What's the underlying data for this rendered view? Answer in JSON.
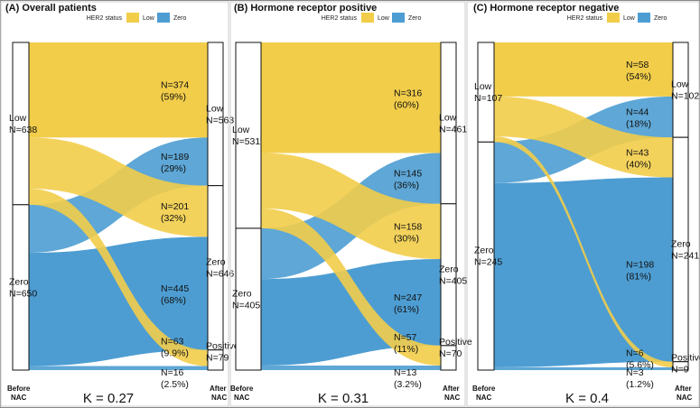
{
  "colors": {
    "low": "#F2CD4A",
    "zero": "#4D9DD2",
    "border": "#111111"
  },
  "chart_data": [
    {
      "type": "sankey",
      "title": "(A) Overall patients",
      "legend": {
        "title": "HER2 status",
        "items": [
          "Low",
          "Zero"
        ]
      },
      "axis_labels": {
        "before": "Before NAC",
        "after": "After NAC"
      },
      "kappa": "K = 0.27",
      "before": [
        {
          "key": "low",
          "label": "Low",
          "n_text": "N=638",
          "n": 638
        },
        {
          "key": "zero",
          "label": "Zero",
          "n_text": "N=650",
          "n": 650
        }
      ],
      "after": [
        {
          "key": "low",
          "label": "Low",
          "n_text": "N=563",
          "n": 563
        },
        {
          "key": "zero",
          "label": "Zero",
          "n_text": "N=646",
          "n": 646
        },
        {
          "key": "positive",
          "label": "Positive",
          "n_text": "N=79",
          "n": 79
        }
      ],
      "flows": [
        {
          "from": "low",
          "to": "low",
          "n": 374,
          "n_text": "N=374",
          "pct": "(59%)"
        },
        {
          "from": "zero",
          "to": "low",
          "n": 189,
          "n_text": "N=189",
          "pct": "(29%)"
        },
        {
          "from": "low",
          "to": "zero",
          "n": 201,
          "n_text": "N=201",
          "pct": "(32%)"
        },
        {
          "from": "zero",
          "to": "zero",
          "n": 445,
          "n_text": "N=445",
          "pct": "(68%)"
        },
        {
          "from": "low",
          "to": "positive",
          "n": 63,
          "n_text": "N=63",
          "pct": "(9.9%)"
        },
        {
          "from": "zero",
          "to": "positive",
          "n": 16,
          "n_text": "N=16",
          "pct": "(2.5%)"
        }
      ]
    },
    {
      "type": "sankey",
      "title": "(B) Hormone receptor positive",
      "legend": {
        "title": "HER2 status",
        "items": [
          "Low",
          "Zero"
        ]
      },
      "axis_labels": {
        "before": "Before NAC",
        "after": "After NAC"
      },
      "kappa": "K = 0.31",
      "before": [
        {
          "key": "low",
          "label": "Low",
          "n_text": "N=531",
          "n": 531
        },
        {
          "key": "zero",
          "label": "Zero",
          "n_text": "N=405",
          "n": 405
        }
      ],
      "after": [
        {
          "key": "low",
          "label": "Low",
          "n_text": "N=461",
          "n": 461
        },
        {
          "key": "zero",
          "label": "Zero",
          "n_text": "N=405",
          "n": 405
        },
        {
          "key": "positive",
          "label": "Positive",
          "n_text": "N=70",
          "n": 70
        }
      ],
      "flows": [
        {
          "from": "low",
          "to": "low",
          "n": 316,
          "n_text": "N=316",
          "pct": "(60%)"
        },
        {
          "from": "zero",
          "to": "low",
          "n": 145,
          "n_text": "N=145",
          "pct": "(36%)"
        },
        {
          "from": "low",
          "to": "zero",
          "n": 158,
          "n_text": "N=158",
          "pct": "(30%)"
        },
        {
          "from": "zero",
          "to": "zero",
          "n": 247,
          "n_text": "N=247",
          "pct": "(61%)"
        },
        {
          "from": "low",
          "to": "positive",
          "n": 57,
          "n_text": "N=57",
          "pct": "(11%)"
        },
        {
          "from": "zero",
          "to": "positive",
          "n": 13,
          "n_text": "N=13",
          "pct": "(3.2%)"
        }
      ]
    },
    {
      "type": "sankey",
      "title": "(C) Hormone receptor negative",
      "legend": {
        "title": "HER2 status",
        "items": [
          "Low",
          "Zero"
        ]
      },
      "axis_labels": {
        "before": "Before NAC",
        "after": "After NAC"
      },
      "kappa": "K = 0.4",
      "before": [
        {
          "key": "low",
          "label": "Low",
          "n_text": "N=107",
          "n": 107
        },
        {
          "key": "zero",
          "label": "Zero",
          "n_text": "N=245",
          "n": 245
        }
      ],
      "after": [
        {
          "key": "low",
          "label": "Low",
          "n_text": "N=102",
          "n": 102
        },
        {
          "key": "zero",
          "label": "Zero",
          "n_text": "N=241",
          "n": 241
        },
        {
          "key": "positive",
          "label": "Positive",
          "n_text": "N=9",
          "n": 9
        }
      ],
      "flows": [
        {
          "from": "low",
          "to": "low",
          "n": 58,
          "n_text": "N=58",
          "pct": "(54%)"
        },
        {
          "from": "zero",
          "to": "low",
          "n": 44,
          "n_text": "N=44",
          "pct": "(18%)"
        },
        {
          "from": "low",
          "to": "zero",
          "n": 43,
          "n_text": "N=43",
          "pct": "(40%)"
        },
        {
          "from": "zero",
          "to": "zero",
          "n": 198,
          "n_text": "N=198",
          "pct": "(81%)"
        },
        {
          "from": "low",
          "to": "positive",
          "n": 6,
          "n_text": "N=6",
          "pct": "(5.6%)"
        },
        {
          "from": "zero",
          "to": "positive",
          "n": 3,
          "n_text": "N=3",
          "pct": "(1.2%)"
        }
      ]
    }
  ]
}
